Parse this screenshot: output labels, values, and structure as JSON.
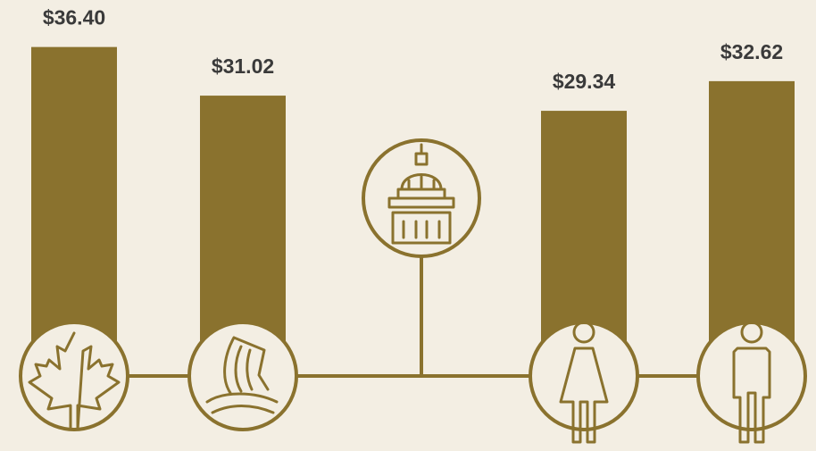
{
  "chart_data": {
    "type": "bar",
    "values": [
      36.4,
      31.02,
      29.34,
      32.62
    ],
    "value_labels": [
      "$36.40",
      "$31.02",
      "$29.34",
      "$32.62"
    ],
    "color": "#8a722e"
  }
}
